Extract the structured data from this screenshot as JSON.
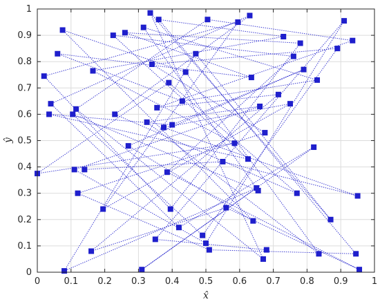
{
  "chart_data": {
    "type": "scatter",
    "title": "",
    "xlabel": "x̂",
    "ylabel": "ŷ",
    "xlim": [
      0,
      1
    ],
    "ylim": [
      0,
      1
    ],
    "xticks": [
      "0",
      "0.1",
      "0.2",
      "0.3",
      "0.4",
      "0.5",
      "0.6",
      "0.7",
      "0.8",
      "0.9",
      "1"
    ],
    "yticks": [
      "0",
      "0.1",
      "0.2",
      "0.3",
      "0.4",
      "0.5",
      "0.6",
      "0.7",
      "0.8",
      "0.9",
      "1"
    ],
    "grid": true,
    "colors": {
      "series": "#1f1fcc",
      "grid": "#dcdcdc",
      "axes": "#262626"
    },
    "series": [
      {
        "x": [
          0.0,
          0.02,
          0.035,
          0.04,
          0.06,
          0.075,
          0.08,
          0.105,
          0.11,
          0.115,
          0.12,
          0.14,
          0.16,
          0.165,
          0.195,
          0.225,
          0.23,
          0.26,
          0.27,
          0.31,
          0.315,
          0.325,
          0.335,
          0.34,
          0.35,
          0.355,
          0.36,
          0.375,
          0.385,
          0.39,
          0.395,
          0.4,
          0.42,
          0.43,
          0.44,
          0.47,
          0.49,
          0.5,
          0.505,
          0.51,
          0.55,
          0.56,
          0.585,
          0.595,
          0.625,
          0.63,
          0.635,
          0.64,
          0.65,
          0.655,
          0.66,
          0.67,
          0.675,
          0.68,
          0.715,
          0.73,
          0.75,
          0.76,
          0.77,
          0.78,
          0.79,
          0.82,
          0.83,
          0.835,
          0.87,
          0.89,
          0.91,
          0.935,
          0.945,
          0.95,
          0.955
        ],
        "y": [
          0.375,
          0.745,
          0.6,
          0.64,
          0.83,
          0.92,
          0.005,
          0.6,
          0.39,
          0.62,
          0.3,
          0.39,
          0.08,
          0.765,
          0.24,
          0.9,
          0.6,
          0.91,
          0.48,
          0.01,
          0.93,
          0.57,
          0.985,
          0.79,
          0.125,
          0.625,
          0.96,
          0.55,
          0.38,
          0.72,
          0.24,
          0.56,
          0.17,
          0.65,
          0.76,
          0.83,
          0.14,
          0.11,
          0.96,
          0.085,
          0.42,
          0.245,
          0.49,
          0.95,
          0.43,
          0.975,
          0.74,
          0.195,
          0.32,
          0.31,
          0.63,
          0.05,
          0.53,
          0.085,
          0.675,
          0.895,
          0.64,
          0.82,
          0.3,
          0.87,
          0.77,
          0.475,
          0.73,
          0.07,
          0.2,
          0.85,
          0.955,
          0.88,
          0.07,
          0.29,
          0.01
        ]
      }
    ]
  }
}
